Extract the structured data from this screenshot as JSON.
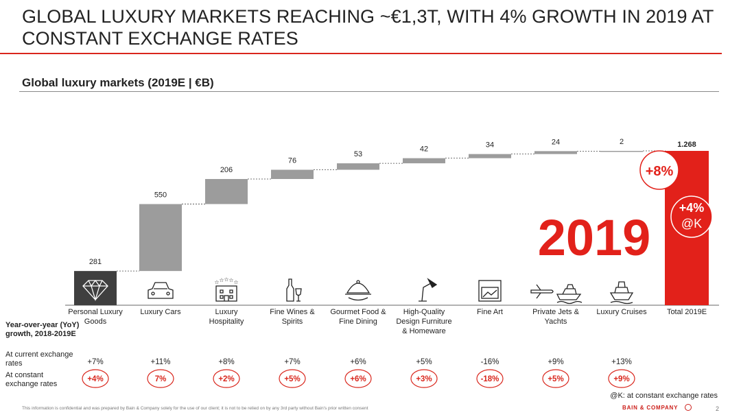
{
  "header": {
    "title": "GLOBAL LUXURY MARKETS REACHING ~€1,3T, WITH 4% GROWTH IN 2019 AT CONSTANT EXCHANGE RATES"
  },
  "chart_data": {
    "type": "waterfall",
    "title": "Global luxury markets (2019E | €B)",
    "categories": [
      "Personal Luxury Goods",
      "Luxury Cars",
      "Luxury Hospitality",
      "Fine Wines & Spirits",
      "Gourmet Food & Fine Dining",
      "High-Quality Design Furniture & Homeware",
      "Fine Art",
      "Private Jets & Yachts",
      "Luxury Cruises",
      "Total 2019E"
    ],
    "values": [
      281,
      550,
      206,
      76,
      53,
      42,
      34,
      24,
      2,
      1268
    ],
    "value_labels": [
      "281",
      "550",
      "206",
      "76",
      "53",
      "42",
      "34",
      "24",
      "2",
      "1.268"
    ],
    "is_total": [
      false,
      false,
      false,
      false,
      false,
      false,
      false,
      false,
      false,
      true
    ],
    "yoy_current": [
      "+7%",
      "+11%",
      "+8%",
      "+7%",
      "+6%",
      "+5%",
      "-16%",
      "+9%",
      "+13%"
    ],
    "yoy_constant": [
      "+4%",
      "7%",
      "+2%",
      "+5%",
      "+6%",
      "+3%",
      "-18%",
      "+5%",
      "+9%"
    ],
    "icons": [
      "diamond-icon",
      "car-icon",
      "hotel-icon",
      "wine-bottle-icon",
      "food-cloche-icon",
      "desk-lamp-icon",
      "framed-picture-icon",
      "jet-and-yacht-icon",
      "cruise-ship-icon"
    ],
    "callouts": {
      "year": "2019",
      "total_growth": "+8%",
      "constant_growth_value": "+4%",
      "constant_growth_suffix": "@K"
    },
    "ylim": [
      0,
      1268
    ],
    "colors": {
      "first_bar": "#3f3f3f",
      "bars": "#9c9c9c",
      "total": "#e2211a",
      "accent": "#d9261c"
    }
  },
  "labels": {
    "yoy_head": "Year-over-year (YoY) growth, 2018-2019E",
    "current": "At current exchange rates",
    "constant": "At constant exchange rates"
  },
  "footnote": "@K: at constant exchange rates",
  "footer": {
    "disclaimer": "This information is confidential and was prepared by Bain & Company solely for the use of our client; it is not to be relied on by any 3rd party without Bain's prior written consent",
    "brand": "BAIN & COMPANY",
    "page": "2"
  }
}
